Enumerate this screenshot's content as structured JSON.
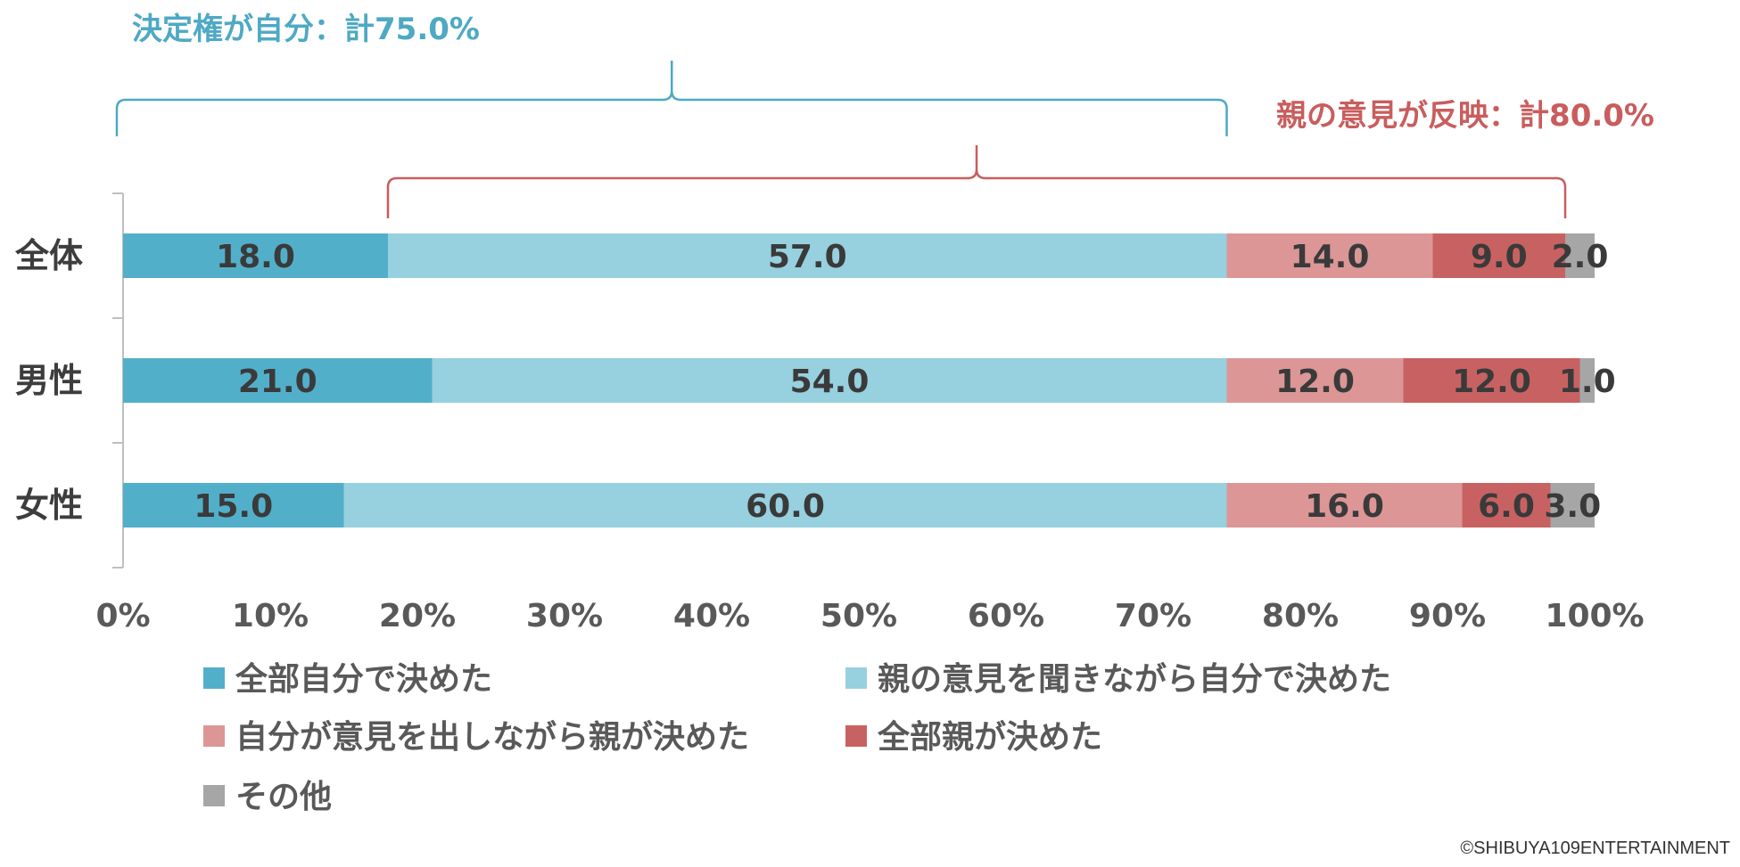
{
  "chart_data": {
    "type": "bar",
    "orientation": "horizontal",
    "stacked": true,
    "categories": [
      "全体",
      "男性",
      "女性"
    ],
    "series": [
      {
        "name": "全部自分で決めた",
        "values": [
          18.0,
          21.0,
          15.0
        ],
        "color": "#52afc9",
        "labels": [
          "18.0",
          "21.0",
          "15.0"
        ]
      },
      {
        "name": "親の意見を聞きながら自分で決めた",
        "values": [
          57.0,
          54.0,
          60.0
        ],
        "color": "#97d0de",
        "labels": [
          "57.0",
          "54.0",
          "60.0"
        ]
      },
      {
        "name": "自分が意見を出しながら親が決めた",
        "values": [
          14.0,
          12.0,
          16.0
        ],
        "color": "#dc9696",
        "labels": [
          "14.0",
          "12.0",
          "16.0"
        ]
      },
      {
        "name": "全部親が決めた",
        "values": [
          9.0,
          12.0,
          6.0
        ],
        "color": "#c86262",
        "labels": [
          "9.0",
          "12.0",
          "6.0"
        ]
      },
      {
        "name": "その他",
        "values": [
          2.0,
          1.0,
          3.0
        ],
        "color": "#a6a6a6",
        "labels": [
          "2.0",
          "1.0",
          "3.0"
        ]
      }
    ],
    "xlim": [
      0,
      100
    ],
    "xticks": [
      "0%",
      "10%",
      "20%",
      "30%",
      "40%",
      "50%",
      "60%",
      "70%",
      "80%",
      "90%",
      "100%"
    ],
    "grid": false,
    "legend_position": "bottom",
    "annotations": [
      {
        "text": "決定権が自分：計75.0%",
        "range": [
          0,
          75
        ],
        "color": "#4ea9c4"
      },
      {
        "text": "親の意見が反映：計80.0%",
        "range": [
          18,
          98
        ],
        "color": "#c95d5d"
      }
    ]
  },
  "footer": {
    "copyright": "©SHIBUYA109ENTERTAINMENT"
  }
}
